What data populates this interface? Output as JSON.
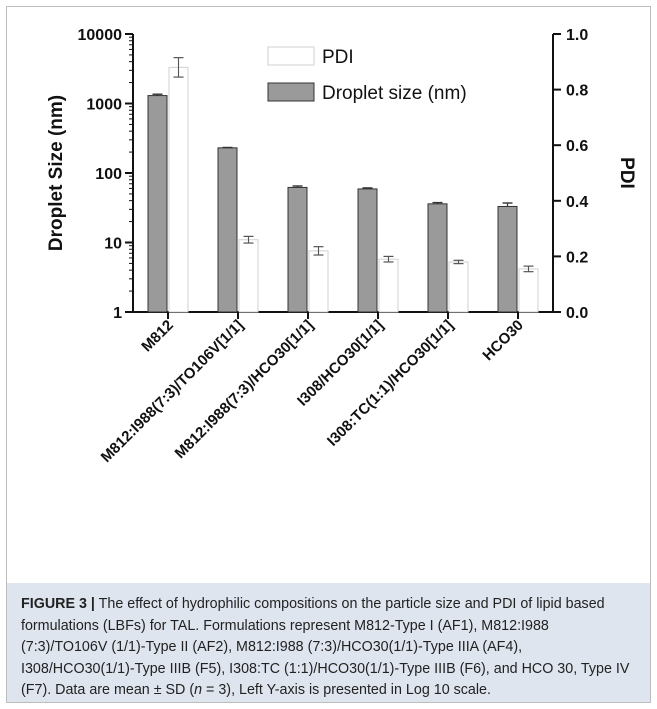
{
  "chart_data": {
    "type": "bar",
    "categories": [
      "M812",
      "M812:I988(7:3)/TO106V[1/1]",
      "M812:I988(7:3)/HCO30[1/1]",
      "I308/HCO30[1/1]",
      "I308:TC(1:1)/HCO30[1/1]",
      "HCO30"
    ],
    "series": [
      {
        "name": "PDI",
        "axis": "right",
        "color": "#ffffff",
        "values": [
          0.88,
          0.26,
          0.22,
          0.19,
          0.18,
          0.155
        ],
        "errors": [
          0.035,
          0.012,
          0.015,
          0.01,
          0.006,
          0.01
        ]
      },
      {
        "name": "Droplet size (nm)",
        "axis": "left",
        "color": "#9a9a9a",
        "values": [
          1300,
          230,
          62,
          59,
          36,
          33
        ],
        "errors": [
          60,
          3,
          3,
          2,
          1.5,
          4
        ]
      }
    ],
    "ylabel_left": "Droplet Size (nm)",
    "ylabel_right": "PDI",
    "y_left": {
      "scale": "log10",
      "ticks": [
        "1",
        "10",
        "100",
        "1000",
        "10000"
      ],
      "range": [
        1,
        10000
      ]
    },
    "y_right": {
      "scale": "linear",
      "ticks": [
        "0.0",
        "0.2",
        "0.4",
        "0.6",
        "0.8",
        "1.0"
      ],
      "range": [
        0,
        1
      ]
    },
    "legend_position": "top-center",
    "grid": false
  },
  "caption": {
    "label": "FIGURE 3 |",
    "text_before_n": " The effect of hydrophilic compositions on the particle size and PDI of lipid based formulations (LBFs) for TAL. Formulations represent M812-Type I (AF1), M812:I988 (7:3)/TO106V (1/1)-Type II (AF2), M812:I988 (7:3)/HCO30(1/1)-Type IIIA (AF4), I308/HCO30(1/1)-Type IIIB (F5), I308:TC (1:1)/HCO30(1/1)-Type IIIB (F6), and HCO 30, Type IV (F7). Data are mean ± SD (",
    "n_symbol": "n",
    "text_after_n": " = 3), Left Y-axis is presented in Log 10 scale."
  }
}
